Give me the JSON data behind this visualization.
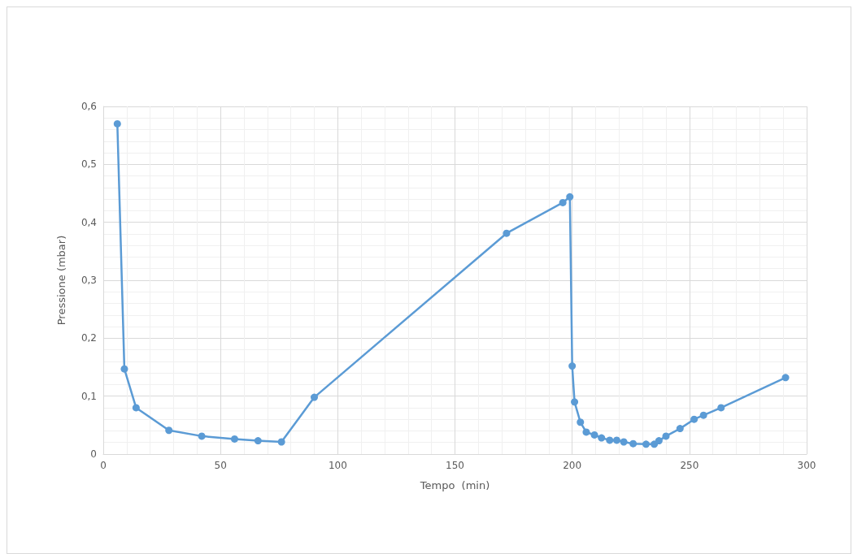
{
  "chart_data": {
    "type": "line",
    "xlabel": "Tempo  (min)",
    "ylabel": "Pressione (mbar)",
    "x": [
      6,
      9,
      14,
      28,
      42,
      56,
      66,
      76,
      90,
      172,
      196,
      199,
      200,
      201,
      203.5,
      206,
      209.5,
      212.5,
      216,
      219,
      222,
      226,
      231.5,
      235,
      237,
      240,
      246,
      252,
      256,
      263.5,
      291
    ],
    "series": [
      {
        "color": "#5b9bd5",
        "values": [
          0.57,
          0.147,
          0.08,
          0.041,
          0.031,
          0.026,
          0.023,
          0.021,
          0.098,
          0.381,
          0.434,
          0.444,
          0.152,
          0.09,
          0.055,
          0.038,
          0.033,
          0.028,
          0.024,
          0.024,
          0.021,
          0.018,
          0.017,
          0.017,
          0.023,
          0.031,
          0.044,
          0.06,
          0.067,
          0.08,
          0.132
        ]
      }
    ],
    "xlim": [
      0,
      300
    ],
    "xticks": [
      0,
      50,
      100,
      150,
      200,
      250,
      300
    ],
    "ylim": [
      0,
      0.6
    ],
    "yticks": [
      0,
      {
        "value": 0.1,
        "label": "0,1"
      },
      {
        "value": 0.2,
        "label": "0,2"
      },
      {
        "value": 0.3,
        "label": "0,3"
      },
      {
        "value": 0.4,
        "label": "0,4"
      },
      {
        "value": 0.5,
        "label": "0,5"
      },
      {
        "value": 0.6,
        "label": "0,6"
      }
    ],
    "grid": true,
    "marker": "circle",
    "line_style": "solid"
  }
}
